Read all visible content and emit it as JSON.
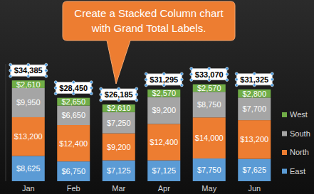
{
  "chart_data": {
    "type": "bar",
    "stacked": true,
    "data_labels": true,
    "tick_labels": "x",
    "grid": false,
    "legend": "right",
    "annotation": [
      "Create a Stacked Column chart",
      "with Grand Total Labels."
    ],
    "categories": [
      "Jan",
      "Feb",
      "Mar",
      "Apr",
      "May",
      "Jun"
    ],
    "ylim": [
      0,
      40000
    ],
    "series": [
      {
        "name": "East",
        "color": "#5b9bd5",
        "values": [
          8625,
          6750,
          7125,
          7125,
          7750,
          7625
        ],
        "value_labels": [
          "$8,625",
          "$6,750",
          "$7,125",
          "$7,125",
          "$7,750",
          "$7,625"
        ]
      },
      {
        "name": "North",
        "color": "#ed7d31",
        "values": [
          13200,
          12400,
          9200,
          12400,
          14000,
          13200
        ],
        "value_labels": [
          "$13,200",
          "$12,400",
          "$9,200",
          "$12,400",
          "$14,000",
          "$13,200"
        ]
      },
      {
        "name": "South",
        "color": "#a5a5a5",
        "values": [
          9950,
          6650,
          7250,
          9200,
          8750,
          7700
        ],
        "value_labels": [
          "$9,950",
          "$6,650",
          "$7,250",
          "$9,200",
          "$8,750",
          "$7,700"
        ]
      },
      {
        "name": "West",
        "color": "#70ad47",
        "values": [
          2610,
          2650,
          2610,
          2570,
          2570,
          2800
        ],
        "value_labels": [
          "$2,610",
          "$2,650",
          "$2,610",
          "$2,570",
          "$2,570",
          "$2,800"
        ]
      }
    ],
    "totals": [
      34385,
      28450,
      26185,
      31295,
      33070,
      31325
    ],
    "total_labels": [
      "$34,385",
      "$28,450",
      "$26,185",
      "$31,295",
      "$33,070",
      "$31,325"
    ]
  }
}
